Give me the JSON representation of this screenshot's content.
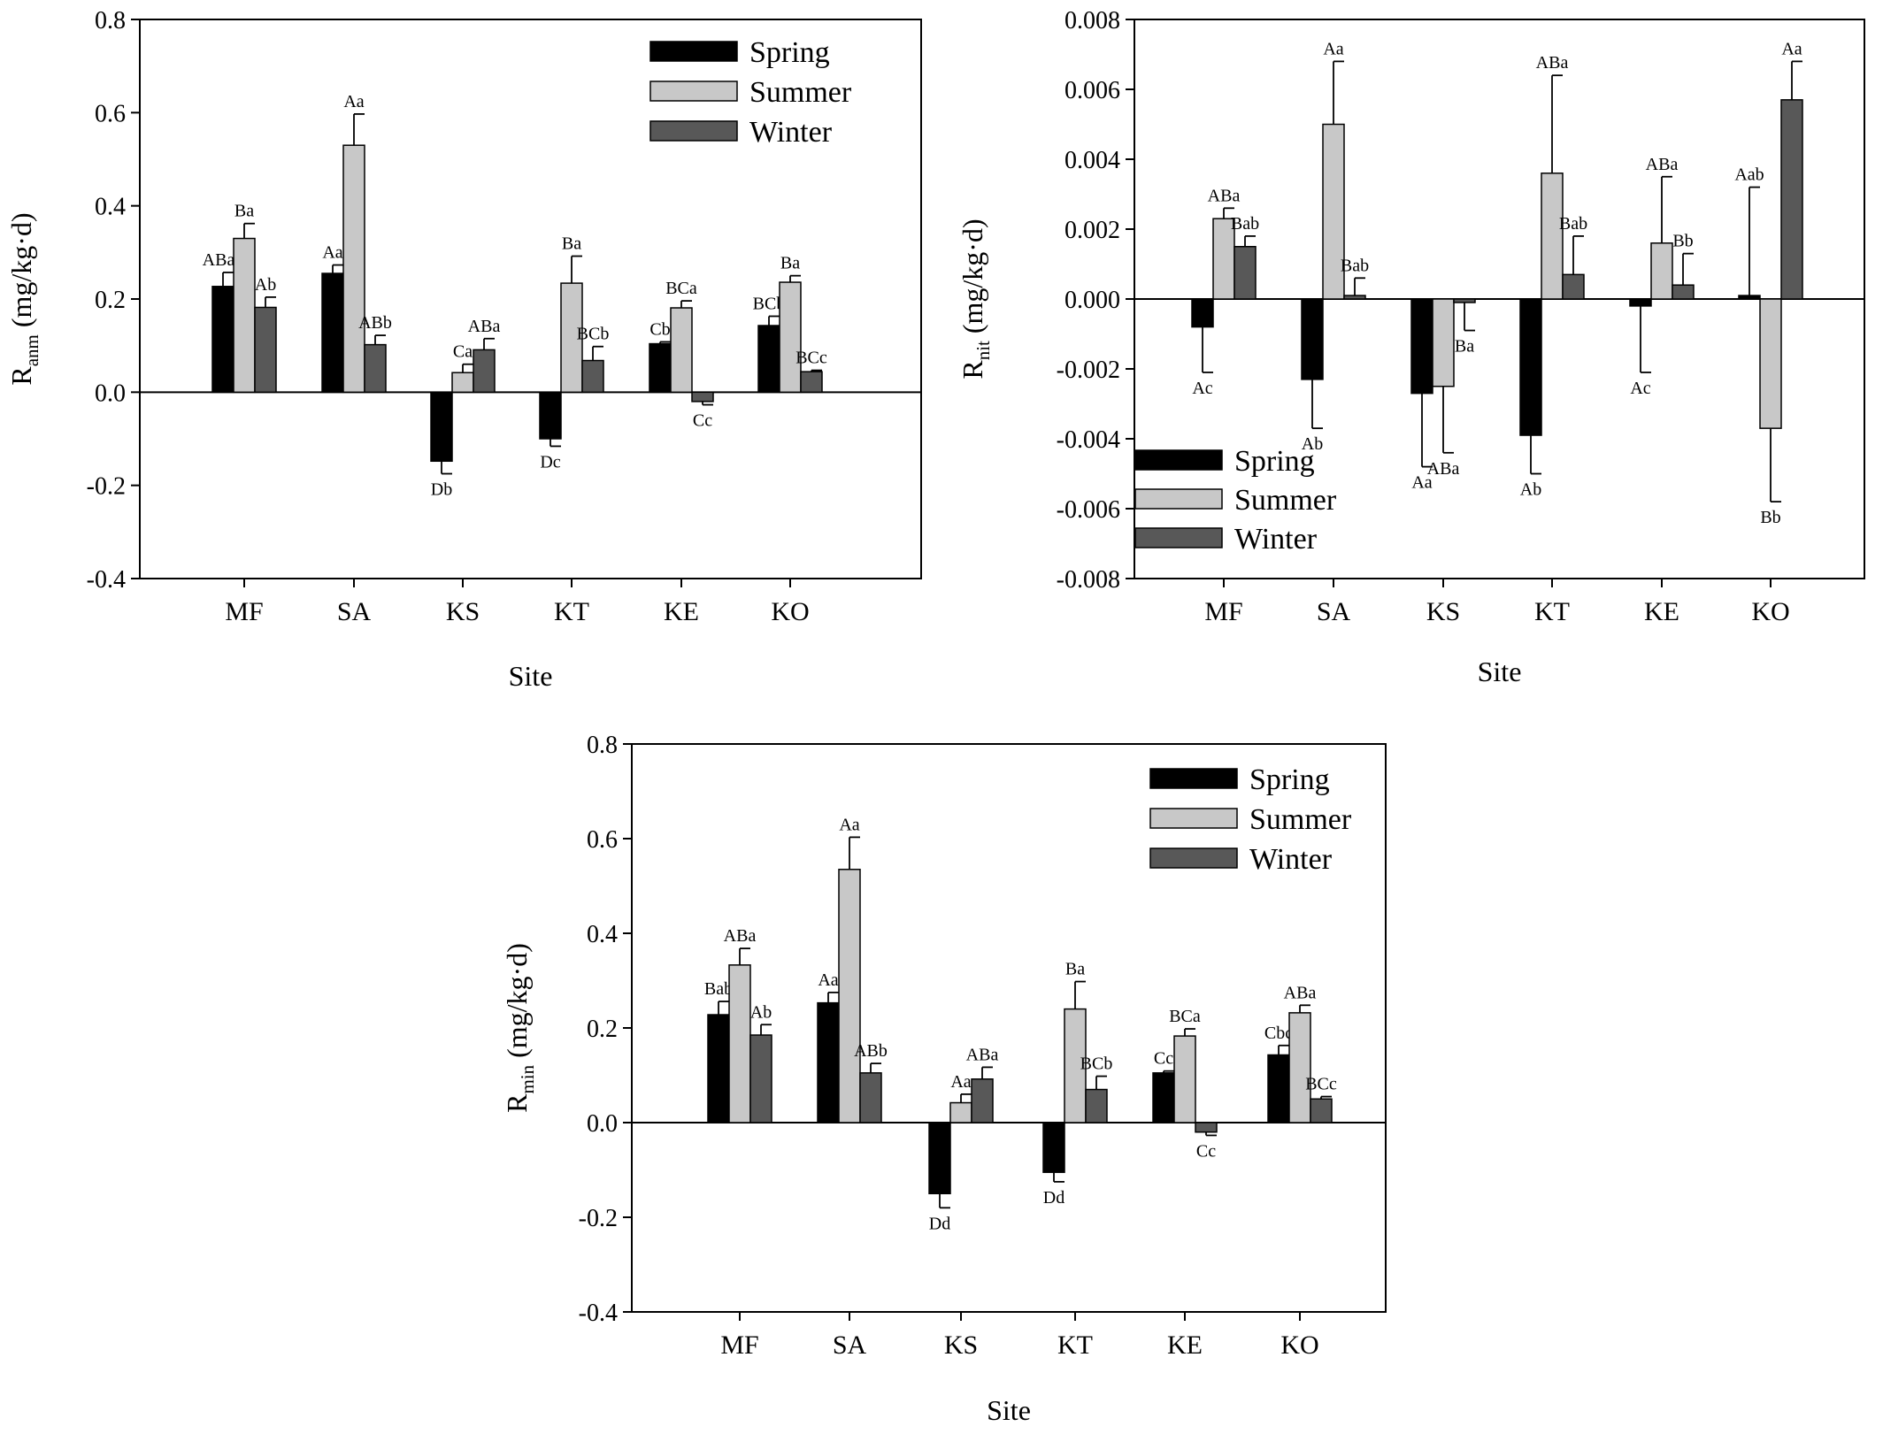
{
  "chart_data": [
    {
      "type": "bar",
      "categories": [
        "MF",
        "SA",
        "KS",
        "KT",
        "KE",
        "KO"
      ],
      "xlabel": "Site",
      "ylabel_main": "R",
      "ylabel_sub": "anm",
      "ylabel_unit": "(mg/kg·d)",
      "ylim": [
        -0.4,
        0.8
      ],
      "yticks": [
        -0.4,
        -0.2,
        0.0,
        0.2,
        0.4,
        0.6,
        0.8
      ],
      "tick_decimals": 1,
      "legend_position": "top-right",
      "series": [
        {
          "name": "Spring",
          "color": "#000000",
          "values": [
            0.227,
            0.255,
            -0.148,
            -0.1,
            0.104,
            0.143
          ],
          "errors": [
            0.03,
            0.018,
            0.027,
            0.016,
            0.004,
            0.02
          ],
          "labels": [
            "ABab",
            "Aa",
            "Db",
            "Dc",
            "Cb",
            "BCb"
          ]
        },
        {
          "name": "Summer",
          "color": "#c8c8c8",
          "values": [
            0.33,
            0.53,
            0.042,
            0.234,
            0.181,
            0.236
          ],
          "errors": [
            0.032,
            0.067,
            0.018,
            0.058,
            0.015,
            0.014
          ],
          "labels": [
            "Ba",
            "Aa",
            "Ca",
            "Ba",
            "BCa",
            "Ba"
          ]
        },
        {
          "name": "Winter",
          "color": "#585858",
          "values": [
            0.182,
            0.102,
            0.091,
            0.068,
            -0.02,
            0.044
          ],
          "errors": [
            0.022,
            0.02,
            0.024,
            0.03,
            0.007,
            0.003
          ],
          "labels": [
            "Ab",
            "ABb",
            "ABa",
            "BCb",
            "Cc",
            "BCc"
          ]
        }
      ]
    },
    {
      "type": "bar",
      "categories": [
        "MF",
        "SA",
        "KS",
        "KT",
        "KE",
        "KO"
      ],
      "xlabel": "Site",
      "ylabel_main": "R",
      "ylabel_sub": "nit",
      "ylabel_unit": "(mg/kg·d)",
      "ylim": [
        -0.008,
        0.008
      ],
      "yticks": [
        -0.008,
        -0.006,
        -0.004,
        -0.002,
        0.0,
        0.002,
        0.004,
        0.006,
        0.008
      ],
      "tick_decimals": 3,
      "legend_position": "bottom-left",
      "series": [
        {
          "name": "Spring",
          "color": "#000000",
          "values": [
            -0.0008,
            -0.0023,
            -0.0027,
            -0.0039,
            -0.0002,
            0.0001
          ],
          "errors": [
            0.0013,
            0.0014,
            0.0021,
            0.0011,
            0.0019,
            0.0031
          ],
          "labels": [
            "Ac",
            "Ab",
            "Aa",
            "Ab",
            "Ac",
            "Aab"
          ]
        },
        {
          "name": "Summer",
          "color": "#c8c8c8",
          "values": [
            0.0023,
            0.005,
            -0.0025,
            0.0036,
            0.0016,
            -0.0037
          ],
          "errors": [
            0.0003,
            0.0018,
            0.0019,
            0.0028,
            0.0019,
            0.0021
          ],
          "labels": [
            "ABa",
            "Aa",
            "ABa",
            "ABa",
            "ABa",
            "Bb"
          ]
        },
        {
          "name": "Winter",
          "color": "#585858",
          "values": [
            0.0015,
            0.0001,
            -0.0001,
            0.0007,
            0.0004,
            0.0057
          ],
          "errors": [
            0.0003,
            0.0005,
            0.0008,
            0.0011,
            0.0009,
            0.0011
          ],
          "labels": [
            "Bab",
            "Bab",
            "Ba",
            "Bab",
            "Bb",
            "Aa"
          ]
        }
      ]
    },
    {
      "type": "bar",
      "categories": [
        "MF",
        "SA",
        "KS",
        "KT",
        "KE",
        "KO"
      ],
      "xlabel": "Site",
      "ylabel_main": "R",
      "ylabel_sub": "min",
      "ylabel_unit": "(mg/kg·d)",
      "ylim": [
        -0.4,
        0.8
      ],
      "yticks": [
        -0.4,
        -0.2,
        0.0,
        0.2,
        0.4,
        0.6,
        0.8
      ],
      "tick_decimals": 1,
      "legend_position": "top-right",
      "series": [
        {
          "name": "Spring",
          "color": "#000000",
          "values": [
            0.228,
            0.253,
            -0.15,
            -0.105,
            0.105,
            0.143
          ],
          "errors": [
            0.028,
            0.022,
            0.03,
            0.02,
            0.004,
            0.02
          ],
          "labels": [
            "Bab",
            "Aa",
            "Dd",
            "Dd",
            "Cc",
            "Cbc"
          ]
        },
        {
          "name": "Summer",
          "color": "#c8c8c8",
          "values": [
            0.333,
            0.535,
            0.042,
            0.24,
            0.183,
            0.232
          ],
          "errors": [
            0.035,
            0.068,
            0.018,
            0.058,
            0.015,
            0.016
          ],
          "labels": [
            "ABa",
            "Aa",
            "Aa",
            "Ba",
            "BCa",
            "ABa"
          ]
        },
        {
          "name": "Winter",
          "color": "#585858",
          "values": [
            0.185,
            0.105,
            0.092,
            0.07,
            -0.02,
            0.05
          ],
          "errors": [
            0.022,
            0.02,
            0.025,
            0.028,
            0.007,
            0.005
          ],
          "labels": [
            "Ab",
            "ABb",
            "ABa",
            "BCb",
            "Cc",
            "BCc"
          ]
        }
      ]
    }
  ]
}
